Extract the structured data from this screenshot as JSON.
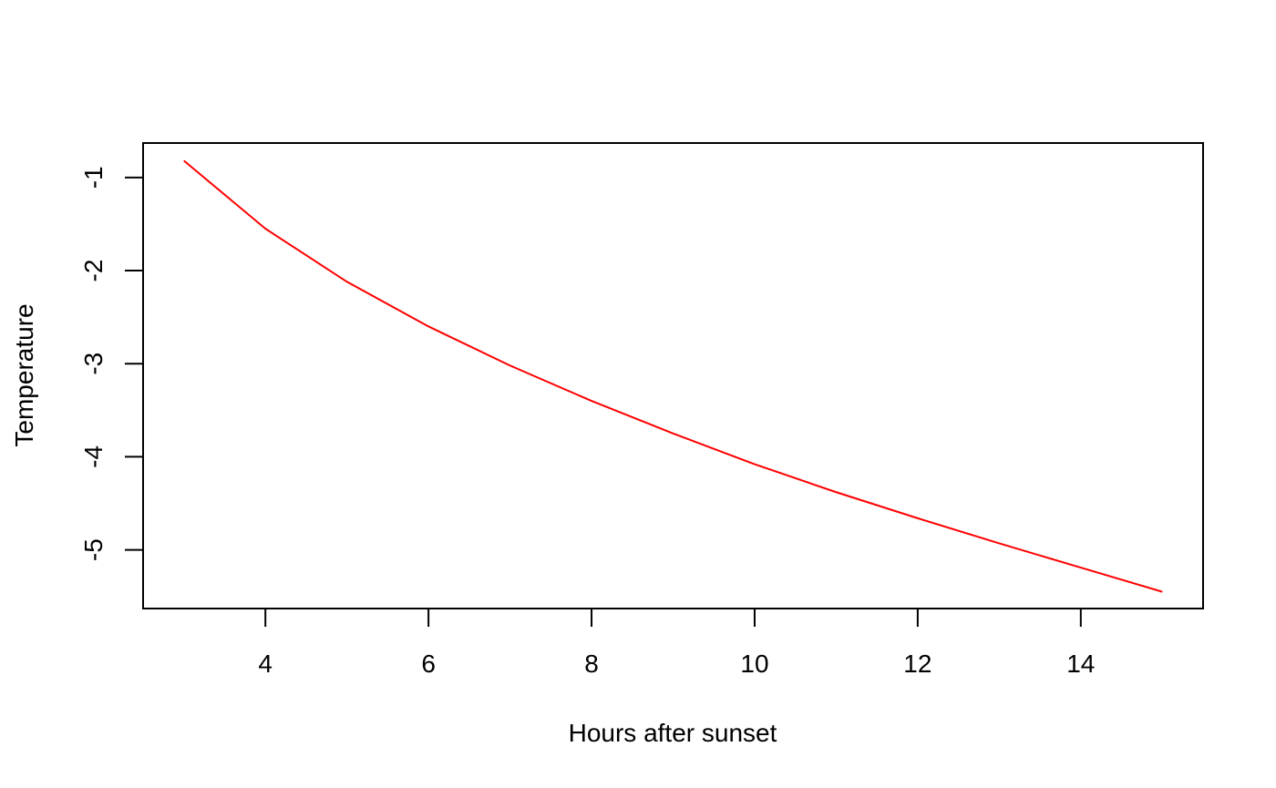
{
  "chart_data": {
    "type": "line",
    "title": "",
    "xlabel": "Hours after sunset",
    "ylabel": "Temperature",
    "xlim": [
      2.5,
      15.5
    ],
    "ylim": [
      -5.63,
      -0.63
    ],
    "x_ticks": [
      4,
      6,
      8,
      10,
      12,
      14
    ],
    "y_ticks": [
      -1,
      -2,
      -3,
      -4,
      -5
    ],
    "grid": false,
    "legend": "none",
    "series": [
      {
        "color": "#ff0000",
        "x": [
          3,
          4,
          5,
          6,
          7,
          8,
          9,
          10,
          11,
          12,
          13,
          14,
          15
        ],
        "y": [
          -0.82,
          -1.55,
          -2.12,
          -2.6,
          -3.02,
          -3.4,
          -3.75,
          -4.08,
          -4.38,
          -4.66,
          -4.93,
          -5.19,
          -5.45
        ]
      }
    ]
  }
}
